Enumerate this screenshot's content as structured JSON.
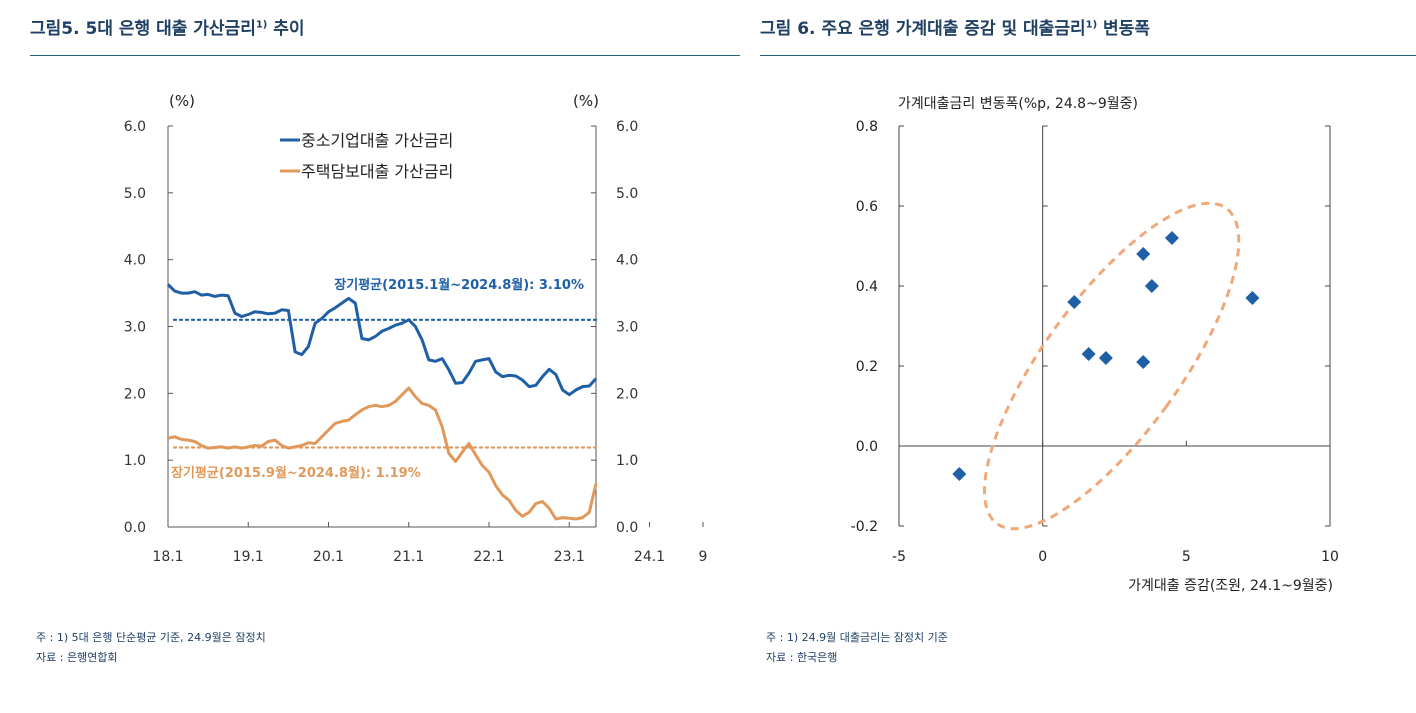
{
  "left": {
    "title_main": "그림5. 5대 은행 대출 가산금리",
    "title_sup": "1)",
    "title_tail": " 추이",
    "note": "주 : 1) 5대 은행 단순평균 기준, 24.9월은 잠정치",
    "source": "자료 : 은행연합회",
    "colors": {
      "sme": "#1f5fa6",
      "mortgage": "#e0995a"
    }
  },
  "right": {
    "title_main": "그림 6. 주요 은행 가계대출 증감 및 대출금리",
    "title_sup": "1)",
    "title_tail": " 변동폭",
    "note": "주 : 1) 24.9월 대출금리는 잠정치 기준",
    "source": "자료 : 한국은행",
    "colors": {
      "marker": "#1f5fa6",
      "ellipse": "#f0a878"
    }
  },
  "chart_data": [
    {
      "type": "line",
      "title": "5대 은행 대출 가산금리 추이",
      "y_unit_left": "(%)",
      "y_unit_right": "(%)",
      "ylim": [
        0,
        6
      ],
      "y_ticks": [
        "0.0",
        "1.0",
        "2.0",
        "3.0",
        "4.0",
        "5.0",
        "6.0"
      ],
      "x_ticks": [
        "18.1",
        "19.1",
        "20.1",
        "21.1",
        "22.1",
        "23.1",
        "24.1",
        "9"
      ],
      "x_tick_months": [
        0,
        12,
        24,
        36,
        48,
        60,
        72,
        80
      ],
      "series": [
        {
          "name": "중소기업대출 가산금리",
          "values": [
            3.63,
            3.53,
            3.5,
            3.5,
            3.52,
            3.47,
            3.48,
            3.45,
            3.47,
            3.46,
            3.2,
            3.15,
            3.18,
            3.22,
            3.21,
            3.19,
            3.2,
            3.25,
            3.24,
            2.62,
            2.58,
            2.7,
            3.05,
            3.12,
            3.22,
            3.28,
            3.35,
            3.42,
            3.35,
            2.82,
            2.8,
            2.85,
            2.93,
            2.97,
            3.02,
            3.05,
            3.1,
            3.0,
            2.8,
            2.5,
            2.48,
            2.52,
            2.35,
            2.15,
            2.16,
            2.3,
            2.48,
            2.5,
            2.52,
            2.32,
            2.25,
            2.27,
            2.26,
            2.2,
            2.1,
            2.12,
            2.25,
            2.36,
            2.28,
            2.05,
            1.98,
            2.05,
            2.1,
            2.11,
            2.22
          ]
        },
        {
          "name": "주택담보대출 가산금리",
          "values": [
            1.33,
            1.35,
            1.31,
            1.3,
            1.28,
            1.22,
            1.18,
            1.19,
            1.2,
            1.18,
            1.2,
            1.18,
            1.2,
            1.22,
            1.21,
            1.28,
            1.3,
            1.22,
            1.18,
            1.2,
            1.22,
            1.26,
            1.25,
            1.35,
            1.45,
            1.55,
            1.58,
            1.6,
            1.68,
            1.75,
            1.8,
            1.82,
            1.8,
            1.82,
            1.88,
            1.98,
            2.08,
            1.95,
            1.85,
            1.82,
            1.75,
            1.5,
            1.1,
            0.98,
            1.12,
            1.25,
            1.08,
            0.92,
            0.82,
            0.62,
            0.48,
            0.4,
            0.25,
            0.16,
            0.22,
            0.35,
            0.38,
            0.28,
            0.12,
            0.14,
            0.13,
            0.12,
            0.14,
            0.22,
            0.65
          ]
        }
      ],
      "reference_lines": [
        {
          "name": "중소기업 장기평균",
          "value": 3.1,
          "label": "장기평균(2015.1월~2024.8월): 3.10%"
        },
        {
          "name": "주택담보 장기평균",
          "value": 1.19,
          "label": "장기평균(2015.9월~2024.8월): 1.19%"
        }
      ]
    },
    {
      "type": "scatter",
      "title": "주요 은행 가계대출 증감 및 대출금리 변동폭",
      "xlabel": "가계대출 증감(조원, 24.1~9월중)",
      "ylabel": "가계대출금리 변동폭(%p, 24.8~9월중)",
      "xlim": [
        -5,
        10
      ],
      "ylim": [
        -0.2,
        0.8
      ],
      "x_ticks": [
        "-5",
        "0",
        "5",
        "10"
      ],
      "y_ticks": [
        "-0.2",
        "0.0",
        "0.2",
        "0.4",
        "0.6",
        "0.8"
      ],
      "points": [
        {
          "x": -2.9,
          "y": -0.07
        },
        {
          "x": 1.1,
          "y": 0.36
        },
        {
          "x": 1.6,
          "y": 0.23
        },
        {
          "x": 2.2,
          "y": 0.22
        },
        {
          "x": 3.5,
          "y": 0.21
        },
        {
          "x": 3.5,
          "y": 0.48
        },
        {
          "x": 3.8,
          "y": 0.4
        },
        {
          "x": 4.5,
          "y": 0.52
        },
        {
          "x": 7.3,
          "y": 0.37
        }
      ],
      "cluster_ellipse": {
        "center_x": 2.4,
        "center_y": 0.2,
        "description": "dashed oval highlight"
      }
    }
  ]
}
